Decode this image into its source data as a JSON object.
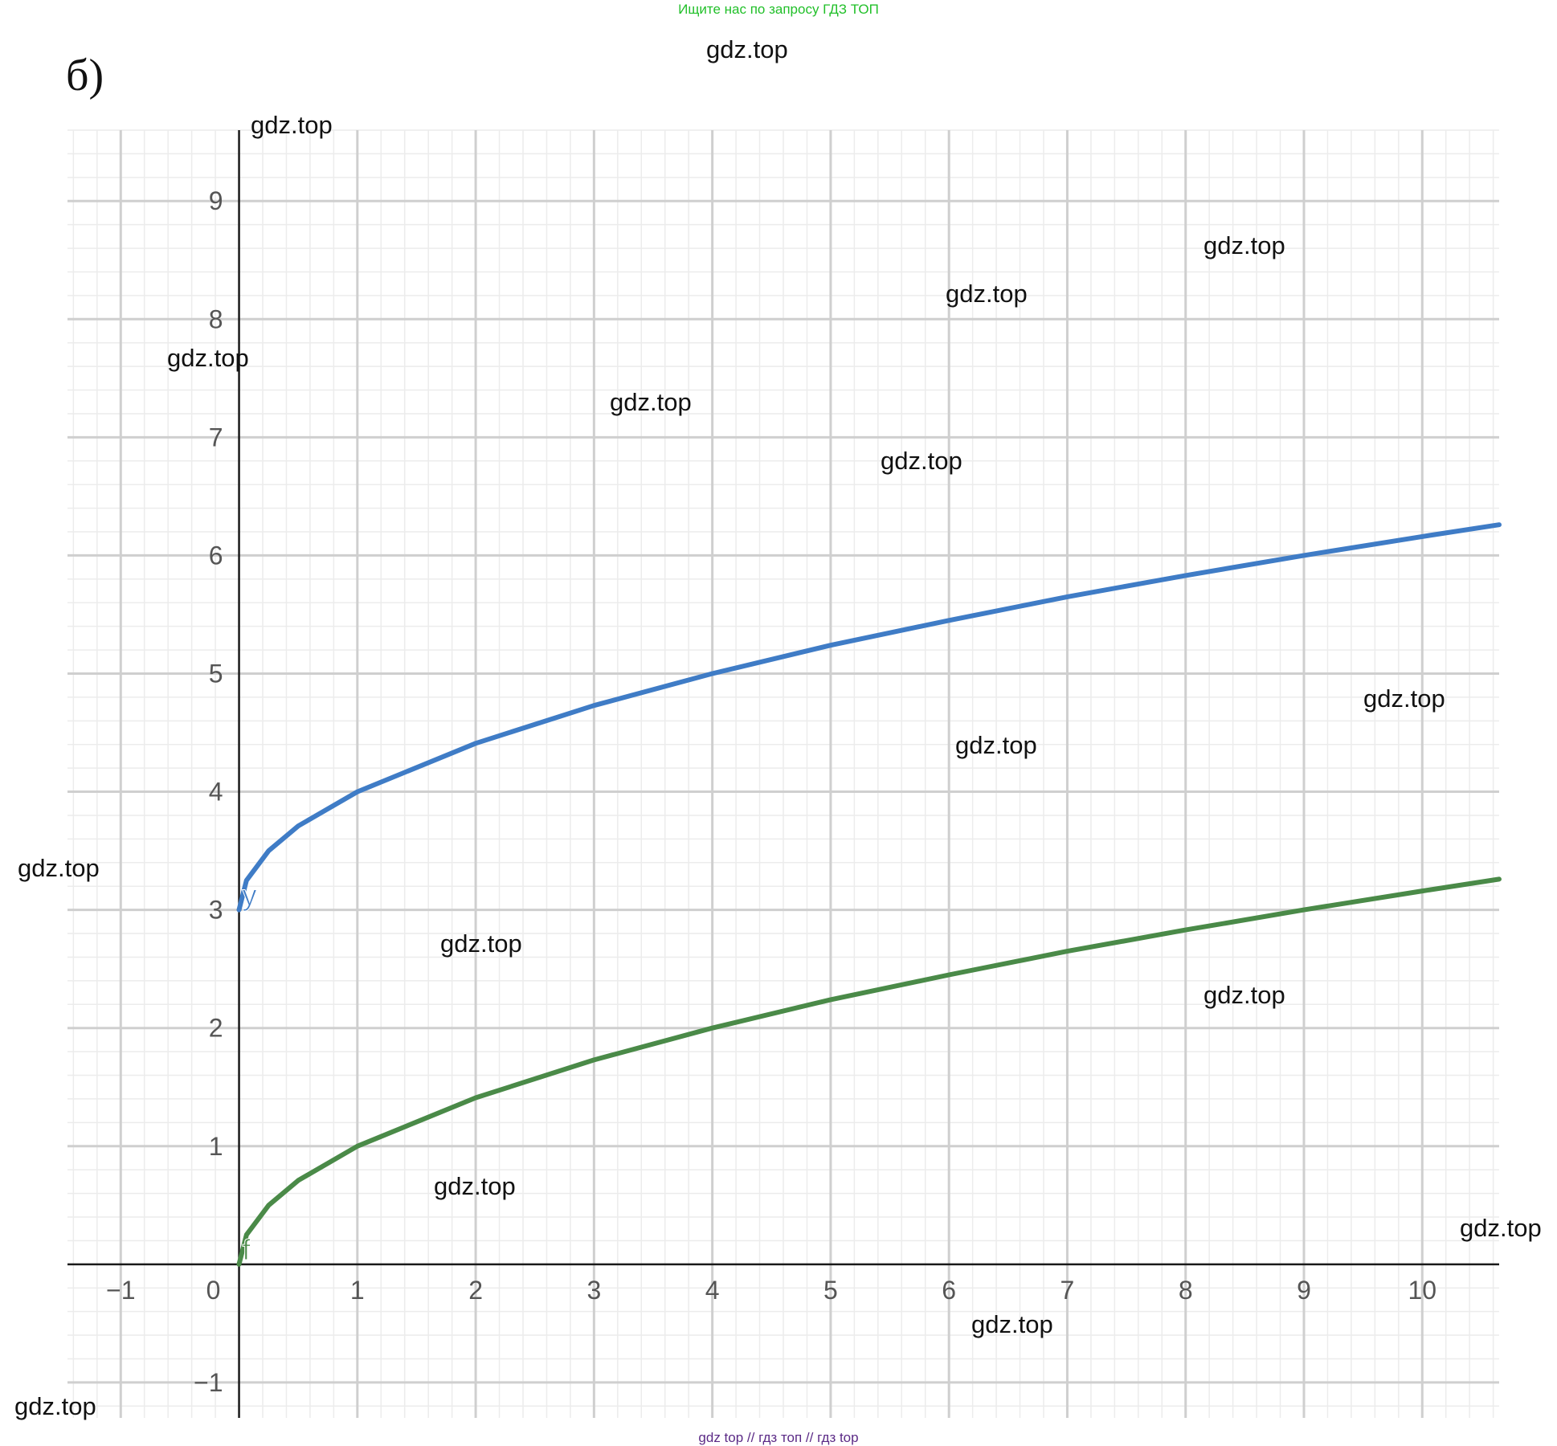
{
  "banner": "Ищите нас по запросу ГДЗ ТОП",
  "part_label": "б)",
  "footer": "gdz top  //  гдз топ  //  гдз top",
  "watermarks": [
    "gdz.top",
    "gdz.top",
    "gdz.top",
    "gdz.top",
    "gdz.top",
    "gdz.top",
    "gdz.top",
    "gdz.top",
    "gdz.top",
    "gdz.top",
    "gdz.top",
    "gdz.top",
    "gdz.top",
    "gdz.top",
    "gdz.top",
    "gdz.top"
  ],
  "chart_data": {
    "type": "line",
    "title": "",
    "xlabel": "",
    "ylabel": "",
    "xlim": [
      -1.45,
      10.65
    ],
    "ylim": [
      -1.3,
      9.6
    ],
    "grid": true,
    "minor_grid_per_unit": 5,
    "x_ticks": [
      -1,
      0,
      1,
      2,
      3,
      4,
      5,
      6,
      7,
      8,
      9,
      10
    ],
    "y_ticks": [
      -1,
      1,
      2,
      3,
      4,
      5,
      6,
      7,
      8,
      9
    ],
    "x_tick_labels": [
      "−1",
      "0",
      "1",
      "2",
      "3",
      "4",
      "5",
      "6",
      "7",
      "8",
      "9",
      "10"
    ],
    "y_tick_labels": [
      "−1",
      "1",
      "2",
      "3",
      "4",
      "5",
      "6",
      "7",
      "8",
      "9"
    ],
    "series": [
      {
        "name": "y",
        "color": "#3f7cc6",
        "x": [
          0,
          0.0625,
          0.25,
          0.5,
          1,
          2,
          3,
          4,
          5,
          6,
          7,
          8,
          9,
          10,
          10.65
        ],
        "values": [
          3,
          3.25,
          3.5,
          3.71,
          4,
          4.41,
          4.73,
          5,
          5.24,
          5.45,
          5.65,
          5.83,
          6,
          6.16,
          6.26
        ]
      },
      {
        "name": "f",
        "color": "#4a8a48",
        "x": [
          0,
          0.0625,
          0.25,
          0.5,
          1,
          2,
          3,
          4,
          5,
          6,
          7,
          8,
          9,
          10,
          10.65
        ],
        "values": [
          0,
          0.25,
          0.5,
          0.71,
          1,
          1.41,
          1.73,
          2,
          2.24,
          2.45,
          2.65,
          2.83,
          3,
          3.16,
          3.26
        ]
      }
    ]
  }
}
